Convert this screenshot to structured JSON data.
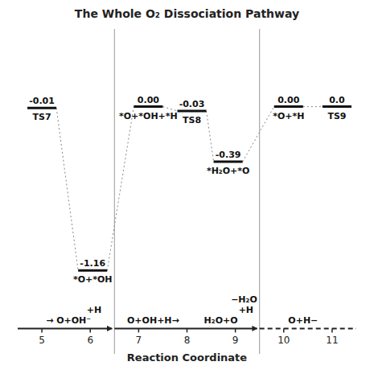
{
  "chart_data": {
    "type": "energy_profile",
    "title": "The Whole O₂ Dissociation Pathway",
    "xlabel": "Reaction Coordinate",
    "background_color": "#ffffff",
    "xlim": [
      4.5,
      11.5
    ],
    "ylim": [
      -1.75,
      0.55
    ],
    "xticks": [
      5,
      6,
      7,
      8,
      9,
      10,
      11
    ],
    "tick_labels": "x",
    "categories": [
      "TS7",
      "*O+*OH",
      "*O+*OH+*H",
      "TS8",
      "*H₂O+*O",
      "*O+*H",
      "TS9"
    ],
    "x": [
      5.0,
      6.05,
      7.2,
      8.1,
      8.85,
      10.1,
      11.1
    ],
    "values": [
      -0.01,
      -1.16,
      0.0,
      -0.03,
      -0.39,
      0.0,
      0.0
    ],
    "value_labels": [
      "-0.01",
      "-1.16",
      "0.00",
      "-0.03",
      "-0.39",
      "0.00",
      "0.0"
    ],
    "data_labels": true,
    "vertical_lines": [
      6.5,
      9.5
    ],
    "xaxis_y": -1.57,
    "annotations": [
      {
        "text": "→ O+OH⁻",
        "x": 5.55
      },
      {
        "text": "+H",
        "x": 6.08
      },
      {
        "text": "O+OH+H→",
        "x": 7.3
      },
      {
        "text": "H₂O+O",
        "x": 8.7
      },
      {
        "text": "+H",
        "x": 9.22
      },
      {
        "text": "−H₂O",
        "x": 9.18
      },
      {
        "text": "O+H−",
        "x": 10.4
      }
    ]
  }
}
